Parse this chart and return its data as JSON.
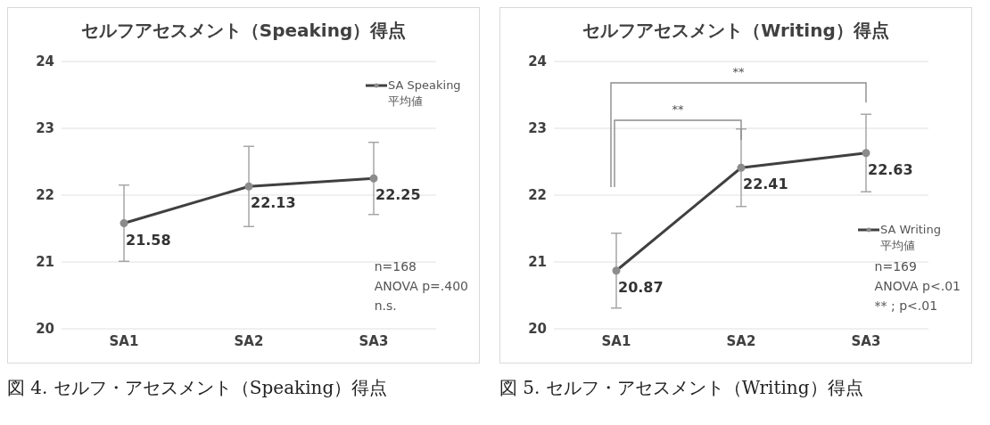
{
  "chart_data": [
    {
      "type": "line",
      "title": "セルフアセスメント（Speaking）得点",
      "categories": [
        "SA1",
        "SA2",
        "SA3"
      ],
      "series": [
        {
          "name": "SA Speaking 平均値",
          "color": "#404040",
          "values": [
            21.58,
            22.13,
            22.25
          ],
          "errors": [
            0.57,
            0.6,
            0.54
          ]
        }
      ],
      "ylim": [
        20,
        24
      ],
      "yticks": [
        20,
        21,
        22,
        23,
        24
      ],
      "grid": "y",
      "legend": "top right",
      "marker": "circle",
      "data_labels": true,
      "annotations": [
        "n=168",
        "ANOVA p=.400",
        "n.s.",
        "図 4. セルフ・アセスメント（Speaking）得点"
      ]
    },
    {
      "type": "line",
      "title": "セルフアセスメント（Writing）得点",
      "categories": [
        "SA1",
        "SA2",
        "SA3"
      ],
      "series": [
        {
          "name": "SA Writing 平均値",
          "color": "#404040",
          "values": [
            20.87,
            22.41,
            22.63
          ],
          "errors": [
            0.56,
            0.58,
            0.58
          ]
        }
      ],
      "ylim": [
        20,
        24
      ],
      "yticks": [
        20,
        21,
        22,
        23,
        24
      ],
      "grid": "y",
      "legend": "right",
      "marker": "circle",
      "data_labels": true,
      "annotations": [
        "**",
        "**",
        "n=169",
        "ANOVA p<.01",
        "** ; p<.01",
        "図 5. セルフ・アセスメント（Writing）得点"
      ]
    }
  ]
}
